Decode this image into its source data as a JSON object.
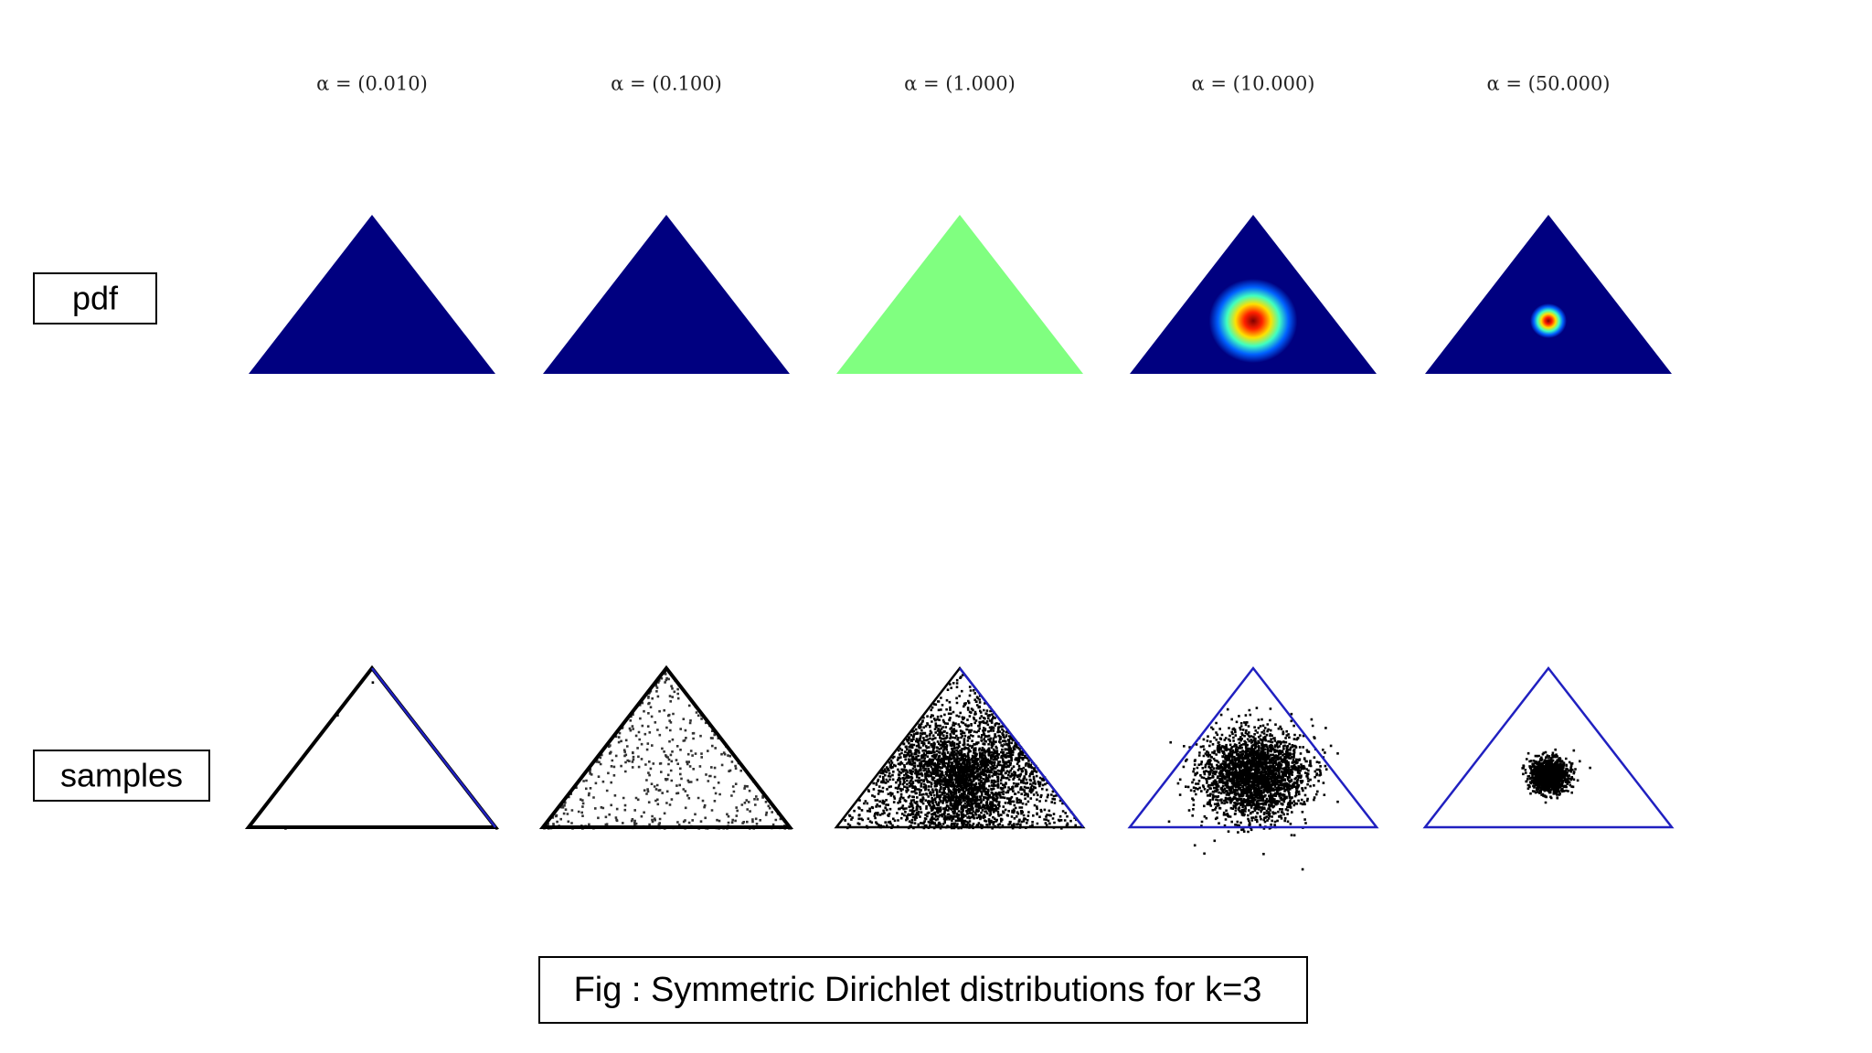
{
  "columns": [
    {
      "title": "α = (0.010)"
    },
    {
      "title": "α = (0.100)"
    },
    {
      "title": "α = (1.000)"
    },
    {
      "title": "α = (10.000)"
    },
    {
      "title": "α = (50.000)"
    }
  ],
  "rows": [
    "pdf",
    "samples"
  ],
  "caption": "Fig : Symmetric Dirichlet distributions for k=3"
}
